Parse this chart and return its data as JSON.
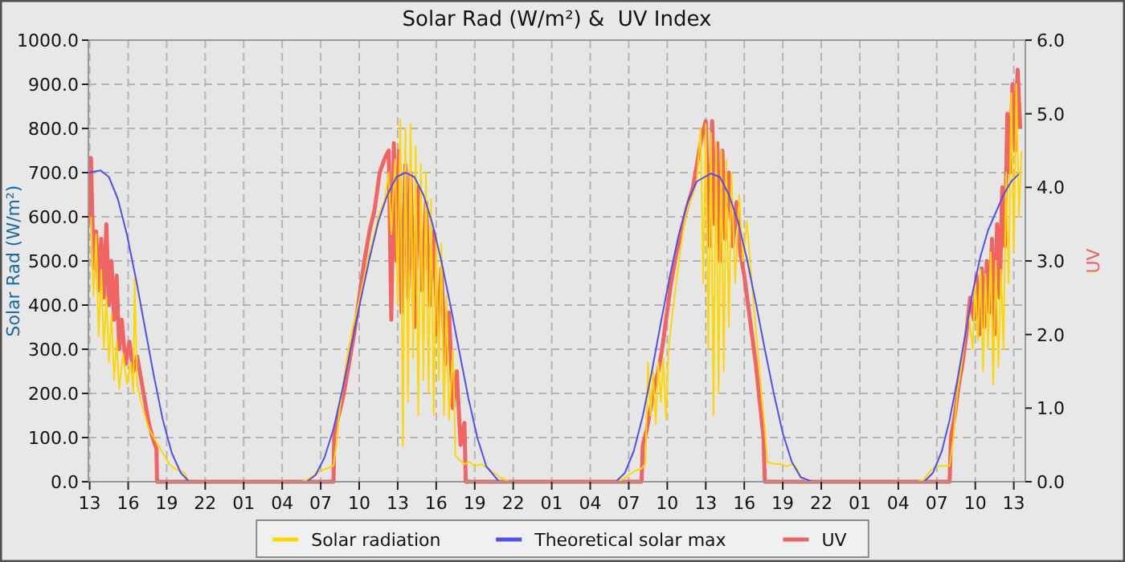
{
  "chart_data": {
    "type": "line",
    "title": "Solar Rad (W/m²) &  UV Index",
    "ylabel": "Solar Rad (W/m²)",
    "y2label": "UV",
    "xlim": [
      "--01-01T12:54",
      "--01-04T13:54"
    ],
    "xticks": [
      {
        "value": "--01-01T13:00",
        "label": "13"
      },
      {
        "value": "--01-01T16:00",
        "label": "16"
      },
      {
        "value": "--01-01T19:00",
        "label": "19"
      },
      {
        "value": "--01-01T22:00",
        "label": "22"
      },
      {
        "value": "--01-02T01:00",
        "label": "01"
      },
      {
        "value": "--01-02T04:00",
        "label": "04"
      },
      {
        "value": "--01-02T07:00",
        "label": "07"
      },
      {
        "value": "--01-02T10:00",
        "label": "10"
      },
      {
        "value": "--01-02T13:00",
        "label": "13"
      },
      {
        "value": "--01-02T16:00",
        "label": "16"
      },
      {
        "value": "--01-02T19:00",
        "label": "19"
      },
      {
        "value": "--01-02T22:00",
        "label": "22"
      },
      {
        "value": "--01-03T01:00",
        "label": "01"
      },
      {
        "value": "--01-03T04:00",
        "label": "04"
      },
      {
        "value": "--01-03T07:00",
        "label": "07"
      },
      {
        "value": "--01-03T10:00",
        "label": "10"
      },
      {
        "value": "--01-03T13:00",
        "label": "13"
      },
      {
        "value": "--01-03T16:00",
        "label": "16"
      },
      {
        "value": "--01-03T19:00",
        "label": "19"
      },
      {
        "value": "--01-03T22:00",
        "label": "22"
      },
      {
        "value": "--01-04T01:00",
        "label": "01"
      },
      {
        "value": "--01-04T04:00",
        "label": "04"
      },
      {
        "value": "--01-04T07:00",
        "label": "07"
      },
      {
        "value": "--01-04T10:00",
        "label": "10"
      },
      {
        "value": "--01-04T13:00",
        "label": "13"
      }
    ],
    "ylim": [
      0,
      1000
    ],
    "yticks": [
      {
        "value": 0,
        "label": "0.0"
      },
      {
        "value": 100,
        "label": "100.0"
      },
      {
        "value": 200,
        "label": "200.0"
      },
      {
        "value": 300,
        "label": "300.0"
      },
      {
        "value": 400,
        "label": "400.0"
      },
      {
        "value": 500,
        "label": "500.0"
      },
      {
        "value": 600,
        "label": "600.0"
      },
      {
        "value": 700,
        "label": "700.0"
      },
      {
        "value": 800,
        "label": "800.0"
      },
      {
        "value": 900,
        "label": "900.0"
      },
      {
        "value": 1000,
        "label": "1000.0"
      }
    ],
    "y2lim": [
      0,
      6
    ],
    "y2ticks": [
      {
        "value": 0,
        "label": "0.0"
      },
      {
        "value": 1,
        "label": "1.0"
      },
      {
        "value": 2,
        "label": "2.0"
      },
      {
        "value": 3,
        "label": "3.0"
      },
      {
        "value": 4,
        "label": "4.0"
      },
      {
        "value": 5,
        "label": "5.0"
      },
      {
        "value": 6,
        "label": "6.0"
      }
    ],
    "grid": true,
    "legend": "bottom",
    "series": [
      {
        "name": "UV",
        "color": "#f06464",
        "axis": "y2",
        "x": [
          "--01-01T13:00",
          "--01-01T13:06",
          "--01-01T13:18",
          "--01-01T13:30",
          "--01-01T13:42",
          "--01-01T13:54",
          "--01-01T14:06",
          "--01-01T14:18",
          "--01-01T14:30",
          "--01-01T14:42",
          "--01-01T14:54",
          "--01-01T15:06",
          "--01-01T15:18",
          "--01-01T15:30",
          "--01-01T15:48",
          "--01-01T16:06",
          "--01-01T16:24",
          "--01-01T16:42",
          "--01-01T17:00",
          "--01-01T17:18",
          "--01-01T17:36",
          "--01-01T17:54",
          "--01-01T18:12",
          "--01-01T18:15",
          "--01-02T08:00",
          "--01-02T08:03",
          "--01-02T08:24",
          "--01-02T08:48",
          "--01-02T09:12",
          "--01-02T09:36",
          "--01-02T10:00",
          "--01-02T10:24",
          "--01-02T10:48",
          "--01-02T11:12",
          "--01-02T11:36",
          "--01-02T12:00",
          "--01-02T12:18",
          "--01-02T12:30",
          "--01-02T12:42",
          "--01-02T12:54",
          "--01-02T13:06",
          "--01-02T13:18",
          "--01-02T13:36",
          "--01-02T13:48",
          "--01-02T14:00",
          "--01-02T14:18",
          "--01-02T14:36",
          "--01-02T14:54",
          "--01-02T15:12",
          "--01-02T15:30",
          "--01-02T15:48",
          "--01-02T16:06",
          "--01-02T16:24",
          "--01-02T16:42",
          "--01-02T17:00",
          "--01-02T17:18",
          "--01-02T17:36",
          "--01-02T17:54",
          "--01-02T18:12",
          "--01-02T18:18",
          "--01-03T08:00",
          "--01-03T08:06",
          "--01-03T08:24",
          "--01-03T08:42",
          "--01-03T09:00",
          "--01-03T09:18",
          "--01-03T09:36",
          "--01-03T09:54",
          "--01-03T10:18",
          "--01-03T10:42",
          "--01-03T11:06",
          "--01-03T11:30",
          "--01-03T12:00",
          "--01-03T12:24",
          "--01-03T12:42",
          "--01-03T13:00",
          "--01-03T13:18",
          "--01-03T13:30",
          "--01-03T13:42",
          "--01-03T13:54",
          "--01-03T14:06",
          "--01-03T14:18",
          "--01-03T14:30",
          "--01-03T14:48",
          "--01-03T15:06",
          "--01-03T15:24",
          "--01-03T15:42",
          "--01-03T16:00",
          "--01-03T16:18",
          "--01-03T16:36",
          "--01-03T16:54",
          "--01-03T17:12",
          "--01-03T17:30",
          "--01-03T17:36",
          "--01-04T08:00",
          "--01-04T08:06",
          "--01-04T08:24",
          "--01-04T08:42",
          "--01-04T09:00",
          "--01-04T09:18",
          "--01-04T09:36",
          "--01-04T09:54",
          "--01-04T10:06",
          "--01-04T10:18",
          "--01-04T10:30",
          "--01-04T10:42",
          "--01-04T10:54",
          "--01-04T11:06",
          "--01-04T11:18",
          "--01-04T11:30",
          "--01-04T11:42",
          "--01-04T11:54",
          "--01-04T12:06",
          "--01-04T12:18",
          "--01-04T12:30",
          "--01-04T12:42",
          "--01-04T12:54",
          "--01-04T13:06",
          "--01-04T13:18",
          "--01-04T13:30"
        ],
        "values": [
          3.5,
          4.4,
          2.9,
          3.4,
          2.6,
          3.3,
          2.5,
          3.5,
          2.4,
          3.0,
          2.2,
          2.8,
          1.8,
          2.2,
          1.6,
          1.9,
          1.5,
          1.7,
          1.4,
          1.1,
          0.8,
          0.6,
          0.45,
          0,
          0,
          0.65,
          0.9,
          1.2,
          1.6,
          2.0,
          2.5,
          3.0,
          3.4,
          3.7,
          4.2,
          4.4,
          4.5,
          2.2,
          4.6,
          3.0,
          4.5,
          2.3,
          4.3,
          2.5,
          4.2,
          2.1,
          4.0,
          2.6,
          3.8,
          2.4,
          3.4,
          2.0,
          2.9,
          1.6,
          2.3,
          1.0,
          1.5,
          0.5,
          0.8,
          0,
          0,
          0.5,
          0.7,
          1.0,
          1.3,
          1.5,
          1.8,
          2.2,
          2.7,
          3.1,
          3.4,
          3.7,
          4.0,
          4.4,
          4.7,
          4.9,
          3.2,
          4.9,
          3.5,
          4.6,
          3.0,
          4.5,
          3.3,
          4.2,
          3.2,
          3.8,
          3.1,
          2.8,
          2.4,
          2.0,
          1.6,
          1.1,
          0.6,
          0,
          0,
          0.6,
          0.9,
          1.3,
          1.6,
          2.0,
          2.5,
          2.2,
          2.8,
          2.0,
          2.9,
          2.1,
          3.0,
          2.3,
          3.3,
          2.0,
          3.5,
          2.5,
          4.0,
          3.2,
          5.0,
          4.2,
          5.4,
          4.5,
          5.6,
          4.8
        ]
      },
      {
        "name": "Solar radiation",
        "color": "#ffd700",
        "x": [
          "--01-01T13:06",
          "--01-01T13:18",
          "--01-01T13:30",
          "--01-01T13:42",
          "--01-01T13:54",
          "--01-01T14:06",
          "--01-01T14:18",
          "--01-01T14:30",
          "--01-01T14:42",
          "--01-01T14:54",
          "--01-01T15:06",
          "--01-01T15:18",
          "--01-01T15:36",
          "--01-01T15:54",
          "--01-01T16:12",
          "--01-01T16:24",
          "--01-01T16:30",
          "--01-01T16:42",
          "--01-01T17:00",
          "--01-01T17:18",
          "--01-01T17:36",
          "--01-01T18:00",
          "--01-01T18:24",
          "--01-01T18:48",
          "--01-01T19:12",
          "--01-01T19:36",
          "--01-01T20:00",
          "--01-01T20:24",
          "--01-01T20:42",
          "--01-02T05:30",
          "--01-02T06:00",
          "--01-02T06:30",
          "--01-02T07:00",
          "--01-02T07:30",
          "--01-02T08:00",
          "--01-02T08:12",
          "--01-02T08:30",
          "--01-02T08:48",
          "--01-02T09:06",
          "--01-02T09:30",
          "--01-02T10:00",
          "--01-02T10:30",
          "--01-02T11:00",
          "--01-02T11:30",
          "--01-02T12:00",
          "--01-02T12:18",
          "--01-02T12:30",
          "--01-02T12:48",
          "--01-02T13:00",
          "--01-02T13:12",
          "--01-02T13:24",
          "--01-02T13:36",
          "--01-02T13:48",
          "--01-02T14:00",
          "--01-02T14:12",
          "--01-02T14:24",
          "--01-02T14:36",
          "--01-02T14:48",
          "--01-02T15:00",
          "--01-02T15:12",
          "--01-02T15:24",
          "--01-02T15:36",
          "--01-02T15:48",
          "--01-02T16:00",
          "--01-02T16:12",
          "--01-02T16:24",
          "--01-02T16:36",
          "--01-02T16:48",
          "--01-02T17:00",
          "--01-02T17:18",
          "--01-02T17:30",
          "--01-02T17:48",
          "--01-02T18:12",
          "--01-02T18:36",
          "--01-02T19:00",
          "--01-02T19:30",
          "--01-02T20:00",
          "--01-02T20:30",
          "--01-02T21:00",
          "--01-02T21:42",
          "--01-03T06:00",
          "--01-03T06:30",
          "--01-03T07:00",
          "--01-03T07:30",
          "--01-03T08:00",
          "--01-03T08:18",
          "--01-03T08:30",
          "--01-03T08:42",
          "--01-03T08:54",
          "--01-03T09:06",
          "--01-03T09:18",
          "--01-03T09:30",
          "--01-03T09:42",
          "--01-03T09:54",
          "--01-03T10:06",
          "--01-03T10:24",
          "--01-03T10:42",
          "--01-03T11:00",
          "--01-03T11:18",
          "--01-03T11:36",
          "--01-03T12:00",
          "--01-03T12:18",
          "--01-03T12:36",
          "--01-03T12:48",
          "--01-03T13:00",
          "--01-03T13:12",
          "--01-03T13:24",
          "--01-03T13:36",
          "--01-03T13:48",
          "--01-03T14:00",
          "--01-03T14:12",
          "--01-03T14:24",
          "--01-03T14:36",
          "--01-03T14:48",
          "--01-03T15:00",
          "--01-03T15:18",
          "--01-03T15:36",
          "--01-03T15:54",
          "--01-03T16:12",
          "--01-03T16:30",
          "--01-03T16:48",
          "--01-03T17:06",
          "--01-03T17:24",
          "--01-03T17:36",
          "--01-03T17:48",
          "--01-03T18:18",
          "--01-03T18:48",
          "--01-03T19:18",
          "--01-03T19:48",
          "--01-03T20:06",
          "--01-03T20:24",
          "--01-03T21:00",
          "--01-04T05:30",
          "--01-04T06:00",
          "--01-04T06:30",
          "--01-04T07:00",
          "--01-04T07:30",
          "--01-04T08:00",
          "--01-04T08:18",
          "--01-04T08:36",
          "--01-04T08:54",
          "--01-04T09:12",
          "--01-04T09:30",
          "--01-04T09:48",
          "--01-04T10:00",
          "--01-04T10:12",
          "--01-04T10:24",
          "--01-04T10:36",
          "--01-04T10:48",
          "--01-04T11:00",
          "--01-04T11:12",
          "--01-04T11:24",
          "--01-04T11:36",
          "--01-04T11:48",
          "--01-04T12:00",
          "--01-04T12:12",
          "--01-04T12:24",
          "--01-04T12:36",
          "--01-04T12:48",
          "--01-04T13:00",
          "--01-04T13:12",
          "--01-04T13:24",
          "--01-04T13:36"
        ],
        "values": [
          600,
          420,
          560,
          330,
          480,
          300,
          420,
          270,
          380,
          230,
          320,
          210,
          290,
          220,
          270,
          200,
          460,
          220,
          180,
          150,
          120,
          100,
          80,
          60,
          40,
          30,
          25,
          20,
          0,
          0,
          5,
          15,
          25,
          30,
          36,
          80,
          170,
          230,
          290,
          350,
          410,
          480,
          540,
          600,
          640,
          700,
          560,
          730,
          400,
          820,
          80,
          800,
          180,
          810,
          280,
          760,
          150,
          720,
          230,
          700,
          200,
          640,
          150,
          560,
          230,
          540,
          150,
          420,
          140,
          300,
          60,
          50,
          40,
          45,
          35,
          40,
          30,
          20,
          10,
          0,
          0,
          5,
          15,
          25,
          30,
          40,
          270,
          150,
          250,
          130,
          270,
          180,
          280,
          140,
          300,
          380,
          450,
          520,
          580,
          620,
          650,
          680,
          800,
          450,
          810,
          300,
          790,
          150,
          770,
          200,
          750,
          250,
          730,
          350,
          700,
          450,
          650,
          500,
          590,
          480,
          380,
          280,
          180,
          120,
          45,
          40,
          40,
          35,
          40,
          30,
          10,
          0,
          0,
          5,
          25,
          36,
          36,
          36,
          100,
          200,
          260,
          330,
          380,
          300,
          450,
          320,
          480,
          250,
          470,
          300,
          520,
          220,
          500,
          260,
          480,
          300,
          700,
          450,
          880,
          520,
          900,
          600,
          750
        ]
      },
      {
        "name": "Theoretical solar max",
        "color": "#5050f0",
        "x": [
          "--01-01T12:54",
          "--01-01T13:51",
          "--01-01T14:30",
          "--01-01T15:12",
          "--01-01T15:54",
          "--01-01T16:36",
          "--01-01T17:18",
          "--01-01T18:00",
          "--01-01T18:42",
          "--01-01T19:24",
          "--01-01T20:06",
          "--01-01T20:45",
          "--01-02T05:54",
          "--01-02T06:36",
          "--01-02T07:18",
          "--01-02T08:00",
          "--01-02T08:42",
          "--01-02T09:24",
          "--01-02T10:06",
          "--01-02T10:48",
          "--01-02T11:30",
          "--01-02T12:12",
          "--01-02T12:54",
          "--01-02T13:36",
          "--01-02T14:18",
          "--01-02T15:00",
          "--01-02T15:42",
          "--01-02T16:24",
          "--01-02T17:06",
          "--01-02T17:48",
          "--01-02T18:30",
          "--01-02T19:12",
          "--01-02T19:54",
          "--01-02T20:54",
          "--01-03T06:00",
          "--01-03T06:42",
          "--01-03T07:24",
          "--01-03T08:06",
          "--01-03T08:48",
          "--01-03T09:30",
          "--01-03T10:12",
          "--01-03T10:54",
          "--01-03T11:36",
          "--01-03T12:18",
          "--01-03T13:24",
          "--01-03T14:06",
          "--01-03T14:48",
          "--01-03T15:30",
          "--01-03T16:12",
          "--01-03T16:54",
          "--01-03T17:36",
          "--01-03T18:18",
          "--01-03T19:00",
          "--01-03T19:42",
          "--01-03T20:24",
          "--01-03T21:18",
          "--01-04T06:00",
          "--01-04T06:42",
          "--01-04T07:24",
          "--01-04T08:00",
          "--01-04T08:36",
          "--01-04T09:12",
          "--01-04T09:48",
          "--01-04T10:24",
          "--01-04T11:00",
          "--01-04T11:36",
          "--01-04T12:12",
          "--01-04T12:48",
          "--01-04T13:24"
        ],
        "values": [
          700,
          705,
          690,
          640,
          560,
          460,
          350,
          240,
          140,
          65,
          20,
          0,
          0,
          15,
          55,
          120,
          210,
          310,
          410,
          505,
          590,
          650,
          690,
          700,
          690,
          650,
          585,
          500,
          400,
          295,
          190,
          100,
          35,
          0,
          0,
          20,
          70,
          150,
          250,
          360,
          465,
          560,
          635,
          680,
          698,
          690,
          650,
          590,
          505,
          405,
          300,
          200,
          110,
          45,
          10,
          0,
          0,
          20,
          70,
          140,
          230,
          330,
          430,
          510,
          570,
          610,
          650,
          680,
          697
        ]
      }
    ]
  }
}
